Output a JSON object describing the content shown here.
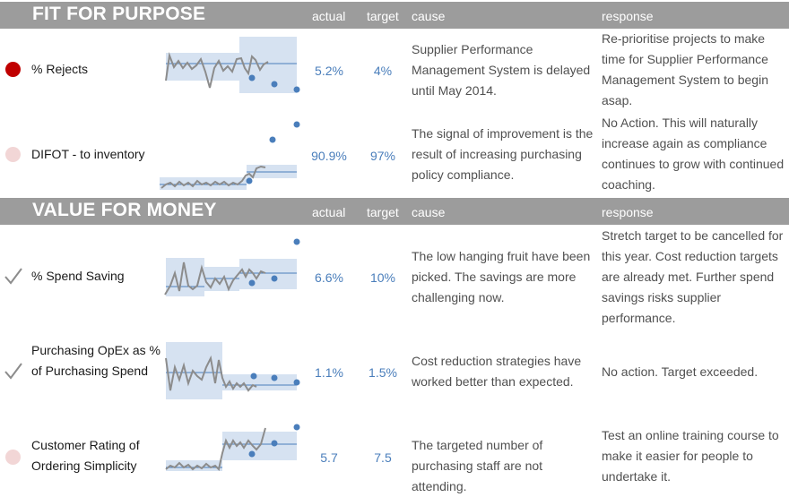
{
  "headers": {
    "actual": "actual",
    "target": "target",
    "cause": "cause",
    "response": "response"
  },
  "sections": [
    {
      "title": "FIT FOR PURPOSE"
    },
    {
      "title": "VALUE FOR MONEY"
    }
  ],
  "rows": [
    {
      "metric": "% Rejects",
      "status": "red",
      "actual": "5.2%",
      "target": "4%",
      "cause": "Supplier Performance Management System is delayed until May 2014.",
      "response": "Re-prioritise projects to make time for Supplier Performance Management System to begin asap."
    },
    {
      "metric": "DIFOT - to inventory",
      "status": "pink",
      "actual": "90.9%",
      "target": "97%",
      "cause": "The signal of improvement is the result of increasing purchasing policy compliance.",
      "response": "No Action. This will naturally increase again as compliance continues to grow with continued coaching."
    },
    {
      "metric": "% Spend Saving",
      "status": "check",
      "actual": "6.6%",
      "target": "10%",
      "cause": "The low hanging fruit have been picked. The savings are more challenging now.",
      "response": "Stretch target to be cancelled for this year. Cost reduction targets are already met. Further spend savings risks supplier performance."
    },
    {
      "metric": "Purchasing OpEx as % of Purchasing Spend",
      "status": "check",
      "actual": "1.1%",
      "target": "1.5%",
      "cause": "Cost reduction strategies have worked better than expected.",
      "response": "No action. Target exceeded."
    },
    {
      "metric": "Customer Rating of Ordering Simplicity",
      "status": "pink",
      "actual": "5.7",
      "target": "7.5",
      "cause": "The targeted number of purchasing staff are not attending.",
      "response": "Test an online training course to make it easier for people to undertake it."
    }
  ],
  "colors": {
    "header_bg": "#9c9c9c",
    "status_red": "#c00000",
    "status_pink": "#f2d6d6",
    "value_blue": "#4a7ebb",
    "band_fill": "#d6e2f1",
    "spark_line": "#8c8c8c"
  }
}
